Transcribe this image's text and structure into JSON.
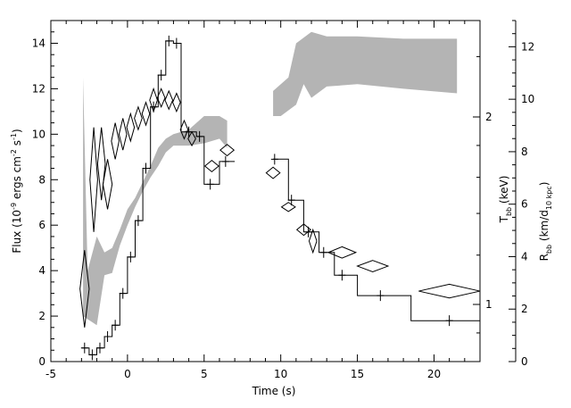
{
  "chart_data": {
    "type": "line",
    "x_axis": {
      "label": "Time (s)",
      "range": [
        -5,
        23
      ],
      "ticks": [
        -5,
        0,
        5,
        10,
        15,
        20
      ]
    },
    "y_left": {
      "label_main": "Flux (10",
      "label_sup1": "-9",
      "label_mid": " ergs cm",
      "label_sup2": "-2",
      "label_mid2": " s",
      "label_sup3": "-1",
      "label_end": ")",
      "range": [
        0,
        15
      ],
      "ticks": [
        0,
        2,
        4,
        6,
        8,
        10,
        12,
        14
      ]
    },
    "y_temp": {
      "label_main": "T",
      "label_sub": "bb",
      "label_end": " (keV)",
      "ticks": [
        1,
        2
      ]
    },
    "y_radius": {
      "label_main": "R",
      "label_sub": "bb",
      "label_mid": " (km/d",
      "label_sub2": "10 kpc",
      "label_end": ")",
      "range": [
        0,
        13
      ],
      "ticks": [
        0,
        2,
        4,
        6,
        8,
        10,
        12
      ]
    },
    "series": [
      {
        "role": "flux_histogram",
        "bins": [
          [
            -3.0,
            -2.5,
            0.6
          ],
          [
            -2.5,
            -2.0,
            0.3
          ],
          [
            -2.0,
            -1.5,
            0.6
          ],
          [
            -1.5,
            -1.0,
            1.1
          ],
          [
            -1.0,
            -0.5,
            1.6
          ],
          [
            -0.5,
            0.0,
            3.0
          ],
          [
            0.0,
            0.5,
            4.6
          ],
          [
            0.5,
            1.0,
            6.2
          ],
          [
            1.0,
            1.5,
            8.5
          ],
          [
            1.5,
            2.0,
            11.2
          ],
          [
            2.0,
            2.5,
            12.6
          ],
          [
            2.5,
            3.0,
            14.1
          ],
          [
            3.0,
            3.5,
            14.0
          ],
          [
            3.5,
            4.5,
            10.1
          ],
          [
            4.5,
            5.0,
            9.9
          ],
          [
            5.0,
            6.0,
            7.8
          ],
          [
            6.0,
            7.0,
            8.8
          ],
          [
            9.5,
            10.5,
            8.9
          ],
          [
            10.5,
            11.5,
            7.1
          ],
          [
            11.5,
            12.5,
            5.7
          ],
          [
            12.5,
            13.5,
            4.8
          ],
          [
            13.5,
            15.0,
            3.8
          ],
          [
            15.0,
            18.5,
            2.9
          ],
          [
            18.5,
            23.0,
            1.8
          ]
        ],
        "error_marks": [
          [
            -2.8,
            0.6
          ],
          [
            -2.3,
            0.3
          ],
          [
            -1.8,
            0.6
          ],
          [
            -1.3,
            1.1
          ],
          [
            -0.8,
            1.6
          ],
          [
            -0.3,
            3.0
          ],
          [
            0.2,
            4.6
          ],
          [
            0.7,
            6.2
          ],
          [
            1.2,
            8.5
          ],
          [
            1.7,
            11.2
          ],
          [
            2.2,
            12.6
          ],
          [
            2.7,
            14.1
          ],
          [
            3.2,
            14.0
          ],
          [
            4.0,
            10.1
          ],
          [
            4.7,
            9.9
          ],
          [
            5.4,
            7.8
          ],
          [
            6.4,
            8.8
          ],
          [
            9.6,
            8.9
          ],
          [
            10.7,
            7.1
          ],
          [
            11.8,
            5.7
          ],
          [
            12.8,
            4.8
          ],
          [
            14.0,
            3.8
          ],
          [
            16.5,
            2.9
          ],
          [
            21.0,
            1.8
          ]
        ]
      },
      {
        "role": "temperature_diamonds",
        "units": "flux_scale",
        "points": [
          {
            "x": -2.8,
            "y": 3.2,
            "dx": 0.3,
            "dy": 1.7
          },
          {
            "x": -2.2,
            "y": 8.0,
            "dx": 0.25,
            "dy": 2.3
          },
          {
            "x": -1.7,
            "y": 8.7,
            "dx": 0.25,
            "dy": 1.6
          },
          {
            "x": -1.3,
            "y": 7.8,
            "dx": 0.3,
            "dy": 1.1
          },
          {
            "x": -0.8,
            "y": 9.7,
            "dx": 0.25,
            "dy": 0.8
          },
          {
            "x": -0.3,
            "y": 10.0,
            "dx": 0.25,
            "dy": 0.7
          },
          {
            "x": 0.2,
            "y": 10.3,
            "dx": 0.25,
            "dy": 0.6
          },
          {
            "x": 0.7,
            "y": 10.7,
            "dx": 0.25,
            "dy": 0.5
          },
          {
            "x": 1.2,
            "y": 10.9,
            "dx": 0.25,
            "dy": 0.5
          },
          {
            "x": 1.7,
            "y": 11.5,
            "dx": 0.25,
            "dy": 0.5
          },
          {
            "x": 2.2,
            "y": 11.6,
            "dx": 0.25,
            "dy": 0.4
          },
          {
            "x": 2.7,
            "y": 11.5,
            "dx": 0.25,
            "dy": 0.4
          },
          {
            "x": 3.2,
            "y": 11.4,
            "dx": 0.25,
            "dy": 0.4
          },
          {
            "x": 3.7,
            "y": 10.2,
            "dx": 0.25,
            "dy": 0.4
          },
          {
            "x": 4.2,
            "y": 9.8,
            "dx": 0.25,
            "dy": 0.3
          },
          {
            "x": 5.5,
            "y": 8.6,
            "dx": 0.45,
            "dy": 0.25
          },
          {
            "x": 6.5,
            "y": 9.3,
            "dx": 0.45,
            "dy": 0.25
          },
          {
            "x": 9.5,
            "y": 8.3,
            "dx": 0.45,
            "dy": 0.25
          },
          {
            "x": 10.5,
            "y": 6.8,
            "dx": 0.45,
            "dy": 0.2
          },
          {
            "x": 11.5,
            "y": 5.8,
            "dx": 0.45,
            "dy": 0.25
          },
          {
            "x": 12.1,
            "y": 5.3,
            "dx": 0.25,
            "dy": 0.5
          },
          {
            "x": 14.0,
            "y": 4.8,
            "dx": 0.9,
            "dy": 0.25
          },
          {
            "x": 16.0,
            "y": 4.2,
            "dx": 1.0,
            "dy": 0.25
          },
          {
            "x": 21.0,
            "y": 3.1,
            "dx": 2.0,
            "dy": 0.3
          }
        ]
      },
      {
        "role": "radius_band_early",
        "units": "flux_scale",
        "upper": [
          [
            -2.9,
            12.5
          ],
          [
            -2.6,
            4.0
          ],
          [
            -2.0,
            5.5
          ],
          [
            -1.5,
            4.8
          ],
          [
            -1.0,
            5.0
          ],
          [
            -0.5,
            5.8
          ],
          [
            0.0,
            6.7
          ],
          [
            0.5,
            7.2
          ],
          [
            1.0,
            7.9
          ],
          [
            1.5,
            8.6
          ],
          [
            2.0,
            9.4
          ],
          [
            2.5,
            9.8
          ],
          [
            3.0,
            10.0
          ],
          [
            4.0,
            10.2
          ],
          [
            5.0,
            10.8
          ],
          [
            6.0,
            10.8
          ],
          [
            6.5,
            10.6
          ]
        ],
        "lower": [
          [
            6.5,
            9.4
          ],
          [
            6.0,
            9.8
          ],
          [
            5.0,
            9.6
          ],
          [
            4.0,
            9.5
          ],
          [
            3.0,
            9.5
          ],
          [
            2.5,
            9.2
          ],
          [
            2.0,
            8.6
          ],
          [
            1.5,
            8.1
          ],
          [
            1.0,
            7.5
          ],
          [
            0.5,
            6.8
          ],
          [
            0.0,
            6.0
          ],
          [
            -0.5,
            5.1
          ],
          [
            -1.0,
            3.9
          ],
          [
            -1.5,
            3.8
          ],
          [
            -2.0,
            1.6
          ],
          [
            -2.9,
            2.0
          ]
        ]
      },
      {
        "role": "radius_band_late",
        "units": "flux_scale",
        "upper": [
          [
            9.5,
            11.9
          ],
          [
            10.5,
            12.5
          ],
          [
            11.0,
            14.0
          ],
          [
            12.0,
            14.5
          ],
          [
            13.0,
            14.3
          ],
          [
            15.0,
            14.3
          ],
          [
            18.0,
            14.2
          ],
          [
            21.5,
            14.2
          ]
        ],
        "lower": [
          [
            21.5,
            11.8
          ],
          [
            18.0,
            12.0
          ],
          [
            15.0,
            12.2
          ],
          [
            13.0,
            12.1
          ],
          [
            12.0,
            11.6
          ],
          [
            11.5,
            12.2
          ],
          [
            11.0,
            11.3
          ],
          [
            10.0,
            10.8
          ],
          [
            9.5,
            10.8
          ]
        ]
      }
    ]
  }
}
